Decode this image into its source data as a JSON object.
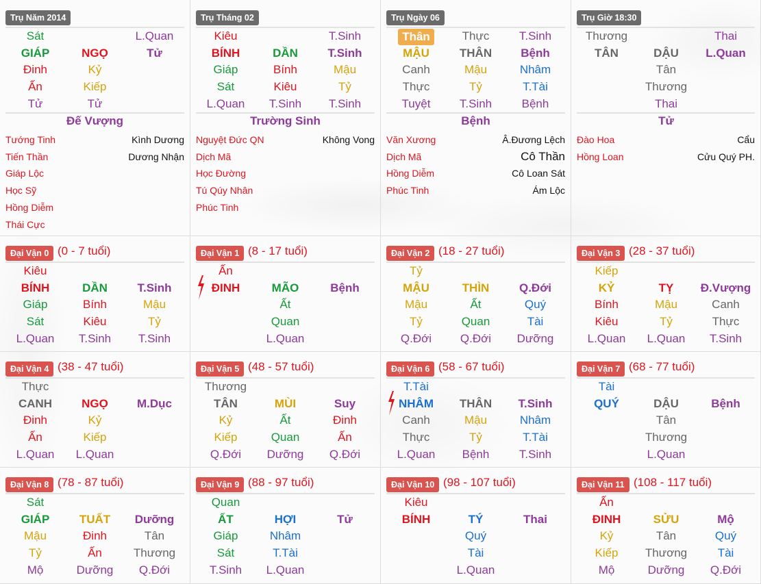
{
  "colors": {
    "g": "#169a3a",
    "r": "#e0141e",
    "y": "#d4a40a",
    "w": "#666666",
    "b": "#1a6fd0",
    "p": "#8e3a9a",
    "k": "#111111",
    "pillar_badge": "#6b6b6b",
    "luck_badge": "#d9534f",
    "than_badge": "#f0ad4e"
  },
  "pillars": [
    {
      "label": "Trụ Năm 2014",
      "rows": [
        [
          [
            "Sát",
            "g"
          ],
          [
            "",
            ""
          ],
          [
            "L.Quan",
            "p"
          ]
        ],
        [
          [
            "GIÁP",
            "g"
          ],
          [
            "NGỌ",
            "r"
          ],
          [
            "Tử",
            "p"
          ]
        ],
        [
          [
            "Đinh",
            "r"
          ],
          [
            "Kỷ",
            "y"
          ],
          [
            "",
            ""
          ]
        ],
        [
          [
            "Ấn",
            "r"
          ],
          [
            "Kiếp",
            "y"
          ],
          [
            "",
            ""
          ]
        ],
        [
          [
            "Tử",
            "p"
          ],
          [
            "Tử",
            "p"
          ],
          [
            "",
            ""
          ]
        ]
      ],
      "status": "Đế Vượng",
      "stars_left": [
        "Tướng Tinh",
        "Tiến Thần",
        "Giáp Lộc",
        "Học Sỹ",
        "Hồng Diễm",
        "Thái Cực"
      ],
      "stars_right": [
        "Kình Dương",
        "Dương Nhận"
      ]
    },
    {
      "label": "Trụ Tháng 02",
      "rows": [
        [
          [
            "Kiêu",
            "r"
          ],
          [
            "",
            ""
          ],
          [
            "T.Sinh",
            "p"
          ]
        ],
        [
          [
            "BÍNH",
            "r"
          ],
          [
            "DẦN",
            "g"
          ],
          [
            "T.Sinh",
            "p"
          ]
        ],
        [
          [
            "Giáp",
            "g"
          ],
          [
            "Bính",
            "r"
          ],
          [
            "Mậu",
            "y"
          ]
        ],
        [
          [
            "Sát",
            "g"
          ],
          [
            "Kiêu",
            "r"
          ],
          [
            "Tỷ",
            "y"
          ]
        ],
        [
          [
            "L.Quan",
            "p"
          ],
          [
            "T.Sinh",
            "p"
          ],
          [
            "T.Sinh",
            "p"
          ]
        ]
      ],
      "status": "Trường Sinh",
      "stars_left": [
        "Nguyệt Đức QN",
        "Dịch Mã",
        "Học Đường",
        "Tú Qúy Nhân",
        "Phúc Tinh"
      ],
      "stars_right": [
        "Không Vong"
      ]
    },
    {
      "label": "Trụ Ngày 06",
      "rows": [
        [
          [
            "Thân",
            "than"
          ],
          [
            "Thực",
            "w"
          ],
          [
            "T.Sinh",
            "p"
          ]
        ],
        [
          [
            "MẬU",
            "y"
          ],
          [
            "THÂN",
            "w"
          ],
          [
            "Bệnh",
            "p"
          ]
        ],
        [
          [
            "Canh",
            "w"
          ],
          [
            "Mậu",
            "y"
          ],
          [
            "Nhâm",
            "b"
          ]
        ],
        [
          [
            "Thực",
            "w"
          ],
          [
            "Tỷ",
            "y"
          ],
          [
            "T.Tài",
            "b"
          ]
        ],
        [
          [
            "Tuyệt",
            "p"
          ],
          [
            "T.Sinh",
            "p"
          ],
          [
            "Bệnh",
            "p"
          ]
        ]
      ],
      "status": "Bệnh",
      "stars_left": [
        "Văn Xương",
        "Dịch Mã",
        "Hồng Diễm",
        "Phúc Tinh"
      ],
      "stars_right": [
        "Â.Đương Lệch",
        "Cô Thần",
        "Cô Loan Sát",
        "Ám Lộc"
      ]
    },
    {
      "label": "Trụ Giờ 18:30",
      "rows": [
        [
          [
            "Thương",
            "w"
          ],
          [
            "",
            ""
          ],
          [
            "Thai",
            "p"
          ]
        ],
        [
          [
            "TÂN",
            "w"
          ],
          [
            "DẬU",
            "w"
          ],
          [
            "L.Quan",
            "p"
          ]
        ],
        [
          [
            "",
            ""
          ],
          [
            "Tân",
            "w"
          ],
          [
            "",
            ""
          ]
        ],
        [
          [
            "",
            ""
          ],
          [
            "Thương",
            "w"
          ],
          [
            "",
            ""
          ]
        ],
        [
          [
            "",
            ""
          ],
          [
            "Thai",
            "p"
          ],
          [
            "",
            ""
          ]
        ]
      ],
      "status": "Tử",
      "stars_left": [
        "Đào Hoa",
        "Hồng Loan"
      ],
      "stars_right": [
        "Cẩu",
        "Cửu Quý PH."
      ]
    }
  ],
  "luck_pillars": [
    {
      "label": "Đại Vận 0",
      "age": "(0 - 7 tuổi)",
      "mark": "",
      "rows": [
        [
          [
            "Kiêu",
            "r"
          ],
          [
            "",
            ""
          ],
          [
            "",
            ""
          ]
        ],
        [
          [
            "BÍNH",
            "r"
          ],
          [
            "DẦN",
            "g"
          ],
          [
            "T.Sinh",
            "p"
          ]
        ],
        [
          [
            "Giáp",
            "g"
          ],
          [
            "Bính",
            "r"
          ],
          [
            "Mậu",
            "y"
          ]
        ],
        [
          [
            "Sát",
            "g"
          ],
          [
            "Kiêu",
            "r"
          ],
          [
            "Tỷ",
            "y"
          ]
        ],
        [
          [
            "L.Quan",
            "p"
          ],
          [
            "T.Sinh",
            "p"
          ],
          [
            "T.Sinh",
            "p"
          ]
        ]
      ]
    },
    {
      "label": "Đại Vận 1",
      "age": "(8 - 17 tuổi)",
      "mark": "lightning",
      "rows": [
        [
          [
            "Ấn",
            "r"
          ],
          [
            "",
            ""
          ],
          [
            "",
            ""
          ]
        ],
        [
          [
            "ĐINH",
            "r"
          ],
          [
            "MÃO",
            "g"
          ],
          [
            "Bệnh",
            "p"
          ]
        ],
        [
          [
            "",
            ""
          ],
          [
            "Ất",
            "g"
          ],
          [
            "",
            ""
          ]
        ],
        [
          [
            "",
            ""
          ],
          [
            "Quan",
            "g"
          ],
          [
            "",
            ""
          ]
        ],
        [
          [
            "",
            ""
          ],
          [
            "L.Quan",
            "p"
          ],
          [
            "",
            ""
          ]
        ]
      ]
    },
    {
      "label": "Đại Vận 2",
      "age": "(18 - 27 tuổi)",
      "mark": "",
      "rows": [
        [
          [
            "Tỷ",
            "y"
          ],
          [
            "",
            ""
          ],
          [
            "",
            ""
          ]
        ],
        [
          [
            "MẬU",
            "y"
          ],
          [
            "THÌN",
            "y"
          ],
          [
            "Q.Đới",
            "p"
          ]
        ],
        [
          [
            "Mậu",
            "y"
          ],
          [
            "Ất",
            "g"
          ],
          [
            "Quý",
            "b"
          ]
        ],
        [
          [
            "Tỷ",
            "y"
          ],
          [
            "Quan",
            "g"
          ],
          [
            "Tài",
            "b"
          ]
        ],
        [
          [
            "Q.Đới",
            "p"
          ],
          [
            "Q.Đới",
            "p"
          ],
          [
            "Dưỡng",
            "p"
          ]
        ]
      ]
    },
    {
      "label": "Đại Vận 3",
      "age": "(28 - 37 tuổi)",
      "mark": "",
      "rows": [
        [
          [
            "Kiếp",
            "y"
          ],
          [
            "",
            ""
          ],
          [
            "",
            ""
          ]
        ],
        [
          [
            "KỶ",
            "y"
          ],
          [
            "TỴ",
            "r"
          ],
          [
            "Đ.Vượng",
            "p"
          ]
        ],
        [
          [
            "Bính",
            "r"
          ],
          [
            "Mậu",
            "y"
          ],
          [
            "Canh",
            "w"
          ]
        ],
        [
          [
            "Kiêu",
            "r"
          ],
          [
            "Tỷ",
            "y"
          ],
          [
            "Thực",
            "w"
          ]
        ],
        [
          [
            "L.Quan",
            "p"
          ],
          [
            "L.Quan",
            "p"
          ],
          [
            "T.Sinh",
            "p"
          ]
        ]
      ]
    },
    {
      "label": "Đại Vận 4",
      "age": "(38 - 47 tuổi)",
      "mark": "",
      "rows": [
        [
          [
            "Thực",
            "w"
          ],
          [
            "",
            ""
          ],
          [
            "",
            ""
          ]
        ],
        [
          [
            "CANH",
            "w"
          ],
          [
            "NGỌ",
            "r"
          ],
          [
            "M.Dục",
            "p"
          ]
        ],
        [
          [
            "Đinh",
            "r"
          ],
          [
            "Kỷ",
            "y"
          ],
          [
            "",
            ""
          ]
        ],
        [
          [
            "Ấn",
            "r"
          ],
          [
            "Kiếp",
            "y"
          ],
          [
            "",
            ""
          ]
        ],
        [
          [
            "L.Quan",
            "p"
          ],
          [
            "L.Quan",
            "p"
          ],
          [
            "",
            ""
          ]
        ]
      ]
    },
    {
      "label": "Đại Vận 5",
      "age": "(48 - 57 tuổi)",
      "mark": "",
      "rows": [
        [
          [
            "Thương",
            "w"
          ],
          [
            "",
            ""
          ],
          [
            "",
            ""
          ]
        ],
        [
          [
            "TÂN",
            "w"
          ],
          [
            "MÙI",
            "y"
          ],
          [
            "Suy",
            "p"
          ]
        ],
        [
          [
            "Kỷ",
            "y"
          ],
          [
            "Ất",
            "g"
          ],
          [
            "Đinh",
            "r"
          ]
        ],
        [
          [
            "Kiếp",
            "y"
          ],
          [
            "Quan",
            "g"
          ],
          [
            "Ấn",
            "r"
          ]
        ],
        [
          [
            "Q.Đới",
            "p"
          ],
          [
            "Dưỡng",
            "p"
          ],
          [
            "Q.Đới",
            "p"
          ]
        ]
      ]
    },
    {
      "label": "Đại Vận 6",
      "age": "(58 - 67 tuổi)",
      "mark": "lightning",
      "rows": [
        [
          [
            "T.Tài",
            "b"
          ],
          [
            "",
            ""
          ],
          [
            "",
            ""
          ]
        ],
        [
          [
            "NHÂM",
            "b"
          ],
          [
            "THÂN",
            "w"
          ],
          [
            "T.Sinh",
            "p"
          ]
        ],
        [
          [
            "Canh",
            "w"
          ],
          [
            "Mậu",
            "y"
          ],
          [
            "Nhâm",
            "b"
          ]
        ],
        [
          [
            "Thực",
            "w"
          ],
          [
            "Tỷ",
            "y"
          ],
          [
            "T.Tài",
            "b"
          ]
        ],
        [
          [
            "L.Quan",
            "p"
          ],
          [
            "Bệnh",
            "p"
          ],
          [
            "T.Sinh",
            "p"
          ]
        ]
      ]
    },
    {
      "label": "Đại Vận 7",
      "age": "(68 - 77 tuổi)",
      "mark": "",
      "rows": [
        [
          [
            "Tài",
            "b"
          ],
          [
            "",
            ""
          ],
          [
            "",
            ""
          ]
        ],
        [
          [
            "QUÝ",
            "b"
          ],
          [
            "DẬU",
            "w"
          ],
          [
            "Bệnh",
            "p"
          ]
        ],
        [
          [
            "",
            ""
          ],
          [
            "Tân",
            "w"
          ],
          [
            "",
            ""
          ]
        ],
        [
          [
            "",
            ""
          ],
          [
            "Thương",
            "w"
          ],
          [
            "",
            ""
          ]
        ],
        [
          [
            "",
            ""
          ],
          [
            "L.Quan",
            "p"
          ],
          [
            "",
            ""
          ]
        ]
      ]
    },
    {
      "label": "Đại Vận 8",
      "age": "(78 - 87 tuổi)",
      "mark": "",
      "rows": [
        [
          [
            "Sát",
            "g"
          ],
          [
            "",
            ""
          ],
          [
            "",
            ""
          ]
        ],
        [
          [
            "GIÁP",
            "g"
          ],
          [
            "TUẤT",
            "y"
          ],
          [
            "Dưỡng",
            "p"
          ]
        ],
        [
          [
            "Mậu",
            "y"
          ],
          [
            "Đinh",
            "r"
          ],
          [
            "Tân",
            "w"
          ]
        ],
        [
          [
            "Tỷ",
            "y"
          ],
          [
            "Ấn",
            "r"
          ],
          [
            "Thương",
            "w"
          ]
        ],
        [
          [
            "Mộ",
            "p"
          ],
          [
            "Dưỡng",
            "p"
          ],
          [
            "Q.Đới",
            "p"
          ]
        ]
      ]
    },
    {
      "label": "Đại Vận 9",
      "age": "(88 - 97 tuổi)",
      "mark": "",
      "rows": [
        [
          [
            "Quan",
            "g"
          ],
          [
            "",
            ""
          ],
          [
            "",
            ""
          ]
        ],
        [
          [
            "ẤT",
            "g"
          ],
          [
            "HỢI",
            "b"
          ],
          [
            "Tử",
            "p"
          ]
        ],
        [
          [
            "Giáp",
            "g"
          ],
          [
            "Nhâm",
            "b"
          ],
          [
            "",
            ""
          ]
        ],
        [
          [
            "Sát",
            "g"
          ],
          [
            "T.Tài",
            "b"
          ],
          [
            "",
            ""
          ]
        ],
        [
          [
            "T.Sinh",
            "p"
          ],
          [
            "L.Quan",
            "p"
          ],
          [
            "",
            ""
          ]
        ]
      ]
    },
    {
      "label": "Đại Vận 10",
      "age": "(98 - 107 tuổi)",
      "mark": "",
      "rows": [
        [
          [
            "Kiêu",
            "r"
          ],
          [
            "",
            ""
          ],
          [
            "",
            ""
          ]
        ],
        [
          [
            "BÍNH",
            "r"
          ],
          [
            "TÝ",
            "b"
          ],
          [
            "Thai",
            "p"
          ]
        ],
        [
          [
            "",
            ""
          ],
          [
            "Quý",
            "b"
          ],
          [
            "",
            ""
          ]
        ],
        [
          [
            "",
            ""
          ],
          [
            "Tài",
            "b"
          ],
          [
            "",
            ""
          ]
        ],
        [
          [
            "",
            ""
          ],
          [
            "L.Quan",
            "p"
          ],
          [
            "",
            ""
          ]
        ]
      ]
    },
    {
      "label": "Đại Vận 11",
      "age": "(108 - 117 tuổi)",
      "mark": "",
      "rows": [
        [
          [
            "Ấn",
            "r"
          ],
          [
            "",
            ""
          ],
          [
            "",
            ""
          ]
        ],
        [
          [
            "ĐINH",
            "r"
          ],
          [
            "SỬU",
            "y"
          ],
          [
            "Mộ",
            "p"
          ]
        ],
        [
          [
            "Kỷ",
            "y"
          ],
          [
            "Tân",
            "w"
          ],
          [
            "Quý",
            "b"
          ]
        ],
        [
          [
            "Kiếp",
            "y"
          ],
          [
            "Thương",
            "w"
          ],
          [
            "Tài",
            "b"
          ]
        ],
        [
          [
            "Mộ",
            "p"
          ],
          [
            "Dưỡng",
            "p"
          ],
          [
            "Q.Đới",
            "p"
          ]
        ]
      ]
    }
  ]
}
